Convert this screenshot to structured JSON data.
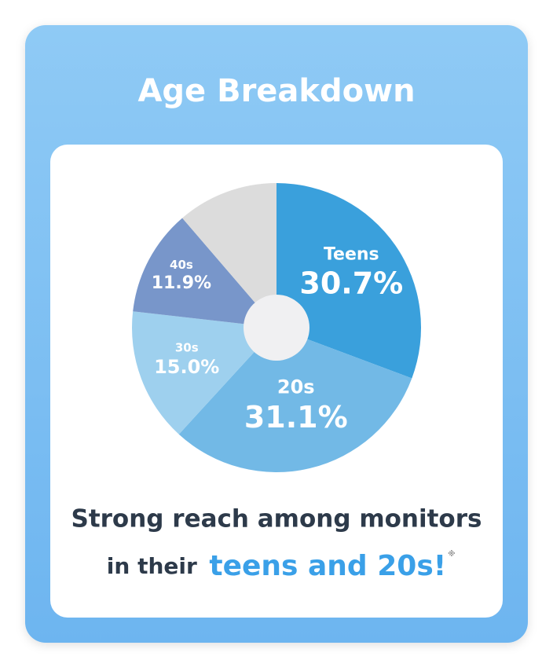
{
  "chart_data": {
    "type": "pie",
    "title": "Age Breakdown",
    "categories": [
      "Teens",
      "20s",
      "30s",
      "40s",
      null
    ],
    "values": [
      30.7,
      31.1,
      15.0,
      11.9,
      11.3
    ],
    "value_labels": [
      "30.7%",
      "31.1%",
      "15.0%",
      "11.9%",
      null
    ],
    "colors": [
      "#3aa0dc",
      "#72b9e6",
      "#9ed0ee",
      "#7896ca",
      "#dcdcdc"
    ]
  },
  "caption": {
    "line1": "Strong reach among monitors",
    "line2_prefix": "in their",
    "highlight": "teens and 20s!",
    "note_mark": "※"
  }
}
